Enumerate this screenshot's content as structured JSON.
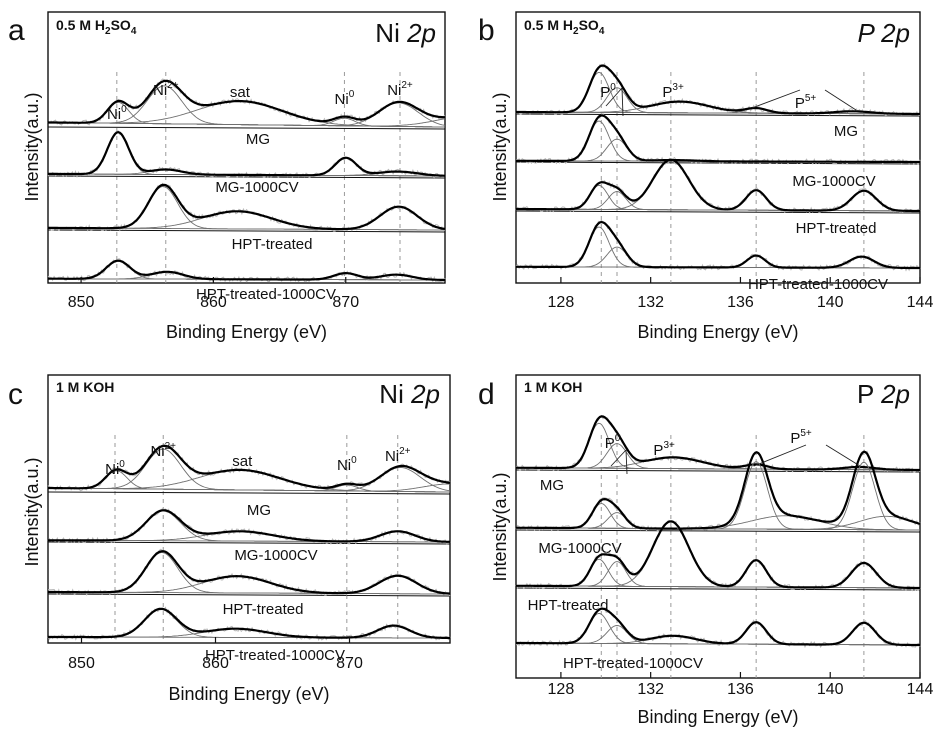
{
  "chart_data": [
    {
      "panel": "a",
      "type": "line",
      "condition": "0.5 M H2SO4",
      "condition_parts": {
        "pre": "0.5 M H",
        "sub1": "2",
        "mid": "SO",
        "sub2": "4"
      },
      "element": "Ni",
      "orbital": "2p",
      "xlabel": "Binding Energy (eV)",
      "ylabel": "Intensity(a.u.)",
      "xlim": [
        847.5,
        877.5
      ],
      "xticks": [
        850,
        860,
        870
      ],
      "reference_lines": [
        852.7,
        856.4,
        869.9,
        874.1
      ],
      "peak_labels": [
        {
          "text": "Ni",
          "sup": "0",
          "x": 852.7
        },
        {
          "text": "Ni",
          "sup": "2+",
          "x": 856.4
        },
        {
          "text": "sat",
          "sup": "",
          "x": 862.0
        },
        {
          "text": "Ni",
          "sup": "0",
          "x": 869.9
        },
        {
          "text": "Ni",
          "sup": "2+",
          "x": 874.1
        }
      ],
      "series": [
        {
          "name": "MG",
          "peaks": [
            [
              852.8,
              0.55,
              0.8
            ],
            [
              856.3,
              1.0,
              1.3
            ],
            [
              862.0,
              0.62,
              3.2
            ],
            [
              869.9,
              0.2,
              0.8
            ],
            [
              874.0,
              0.62,
              1.5
            ],
            [
              879.5,
              0.3,
              2.5
            ]
          ],
          "bg": 0.12
        },
        {
          "name": "MG-1000CV",
          "peaks": [
            [
              852.8,
              1.0,
              0.8
            ],
            [
              856.4,
              0.12,
              1.2
            ],
            [
              870.0,
              0.42,
              0.8
            ],
            [
              873.9,
              0.1,
              1.5
            ]
          ],
          "bg": 0.05
        },
        {
          "name": "HPT-treated",
          "peaks": [
            [
              856.2,
              1.0,
              1.1
            ],
            [
              861.8,
              0.42,
              2.6
            ],
            [
              874.0,
              0.55,
              1.4
            ]
          ],
          "bg": 0.05
        },
        {
          "name": "HPT-treated-1000CV",
          "peaks": [
            [
              852.8,
              0.7,
              0.9
            ],
            [
              856.5,
              0.28,
              1.2
            ],
            [
              870.0,
              0.25,
              0.9
            ],
            [
              873.8,
              0.2,
              1.2
            ]
          ],
          "bg": 0.05
        }
      ]
    },
    {
      "panel": "b",
      "type": "line",
      "condition": "0.5 M H2SO4",
      "condition_parts": {
        "pre": "0.5 M H",
        "sub1": "2",
        "mid": "SO",
        "sub2": "4"
      },
      "element": "P",
      "orbital": "2p",
      "xlabel": "Binding Energy (eV)",
      "ylabel": "Intensity(a.u.)",
      "xlim": [
        126,
        144
      ],
      "xticks": [
        128,
        132,
        136,
        140,
        144
      ],
      "reference_lines": [
        129.8,
        130.5,
        132.9,
        136.7,
        141.5
      ],
      "peak_labels": [
        {
          "text": "P",
          "sup": "0",
          "x": 130.1
        },
        {
          "text": "P",
          "sup": "3+",
          "x": 133.0
        },
        {
          "text": "P",
          "sup": "5+",
          "x": 138.9
        }
      ],
      "series": [
        {
          "name": "MG",
          "peaks": [
            [
              129.7,
              1.0,
              0.45
            ],
            [
              130.5,
              0.62,
              0.45
            ],
            [
              133.3,
              0.28,
              1.3
            ],
            [
              136.7,
              0.12,
              0.5
            ],
            [
              141.0,
              0.06,
              0.8
            ]
          ],
          "bg": 0.05
        },
        {
          "name": "MG-1000CV",
          "peaks": [
            [
              129.7,
              1.0,
              0.45
            ],
            [
              130.5,
              0.55,
              0.45
            ],
            [
              133.0,
              0.03,
              1.0
            ]
          ],
          "bg": 0.03
        },
        {
          "name": "HPT-treated",
          "peaks": [
            [
              129.7,
              0.6,
              0.4
            ],
            [
              130.5,
              0.45,
              0.4
            ],
            [
              132.9,
              1.25,
              0.8
            ],
            [
              136.7,
              0.5,
              0.45
            ],
            [
              141.5,
              0.5,
              0.55
            ]
          ],
          "bg": 0.05
        },
        {
          "name": "HPT-treated-1000CV",
          "peaks": [
            [
              129.7,
              1.0,
              0.45
            ],
            [
              130.5,
              0.5,
              0.45
            ],
            [
              136.7,
              0.3,
              0.4
            ],
            [
              141.4,
              0.28,
              0.55
            ]
          ],
          "bg": 0.03
        }
      ]
    },
    {
      "panel": "c",
      "type": "line",
      "condition": "1 M KOH",
      "condition_parts": {
        "pre": "1 M KOH",
        "sub1": "",
        "mid": "",
        "sub2": ""
      },
      "element": "Ni",
      "orbital": "2p",
      "xlabel": "Binding Energy (eV)",
      "ylabel": "Intensity(a.u.)",
      "xlim": [
        847.5,
        877.5
      ],
      "xticks": [
        850,
        860,
        870
      ],
      "reference_lines": [
        852.5,
        856.1,
        869.8,
        873.6
      ],
      "peak_labels": [
        {
          "text": "Ni",
          "sup": "0",
          "x": 852.5
        },
        {
          "text": "Ni",
          "sup": "2+",
          "x": 856.1
        },
        {
          "text": "sat",
          "sup": "",
          "x": 862.0
        },
        {
          "text": "Ni",
          "sup": "0",
          "x": 869.8
        },
        {
          "text": "Ni",
          "sup": "2+",
          "x": 873.6
        }
      ],
      "series": [
        {
          "name": "MG",
          "peaks": [
            [
              852.6,
              0.45,
              0.8
            ],
            [
              856.1,
              1.0,
              1.3
            ],
            [
              861.8,
              0.5,
              3.0
            ],
            [
              869.8,
              0.15,
              0.8
            ],
            [
              873.8,
              0.6,
              1.5
            ],
            [
              877.5,
              0.2,
              2.0
            ]
          ],
          "bg": 0.1
        },
        {
          "name": "MG-1000CV",
          "peaks": [
            [
              856.1,
              0.85,
              1.3
            ],
            [
              861.8,
              0.28,
              2.5
            ],
            [
              873.6,
              0.3,
              1.3
            ]
          ],
          "bg": 0.05
        },
        {
          "name": "HPT-treated",
          "peaks": [
            [
              856.0,
              1.0,
              1.2
            ],
            [
              861.6,
              0.42,
              2.5
            ],
            [
              873.6,
              0.45,
              1.4
            ]
          ],
          "bg": 0.05
        },
        {
          "name": "HPT-treated-1000CV",
          "peaks": [
            [
              855.9,
              0.8,
              1.2
            ],
            [
              861.5,
              0.25,
              2.3
            ],
            [
              873.3,
              0.35,
              1.2
            ]
          ],
          "bg": 0.03
        }
      ]
    },
    {
      "panel": "d",
      "type": "line",
      "condition": "1 M KOH",
      "condition_parts": {
        "pre": "1 M KOH",
        "sub1": "",
        "mid": "",
        "sub2": ""
      },
      "element": "P",
      "orbital": "2p",
      "xlabel": "Binding Energy (eV)",
      "ylabel": "Intensity(a.u.)",
      "xlim": [
        126,
        144
      ],
      "xticks": [
        128,
        132,
        136,
        140,
        144
      ],
      "reference_lines": [
        129.8,
        130.5,
        132.9,
        136.7,
        141.5
      ],
      "peak_labels": [
        {
          "text": "P",
          "sup": "0",
          "x": 130.3
        },
        {
          "text": "P",
          "sup": "3+",
          "x": 132.6
        },
        {
          "text": "P",
          "sup": "5+",
          "x": 138.7
        }
      ],
      "series": [
        {
          "name": "MG",
          "peaks": [
            [
              129.7,
              1.0,
              0.45
            ],
            [
              130.5,
              0.55,
              0.45
            ],
            [
              133.0,
              0.25,
              1.3
            ],
            [
              136.7,
              0.1,
              0.5
            ],
            [
              141.3,
              0.06,
              0.7
            ]
          ],
          "bg": 0.05
        },
        {
          "name": "MG-1000CV",
          "peaks": [
            [
              129.8,
              0.55,
              0.4
            ],
            [
              130.5,
              0.35,
              0.4
            ],
            [
              136.7,
              1.5,
              0.5
            ],
            [
              138.0,
              0.3,
              1.5
            ],
            [
              141.5,
              1.5,
              0.5
            ],
            [
              142.5,
              0.3,
              1.2
            ]
          ],
          "bg": 0.05
        },
        {
          "name": "HPT-treated",
          "peaks": [
            [
              129.7,
              0.6,
              0.4
            ],
            [
              130.5,
              0.55,
              0.4
            ],
            [
              132.9,
              1.45,
              0.8
            ],
            [
              136.7,
              0.6,
              0.45
            ],
            [
              141.5,
              0.55,
              0.55
            ]
          ],
          "bg": 0.05
        },
        {
          "name": "HPT-treated-1000CV",
          "peaks": [
            [
              129.7,
              0.75,
              0.45
            ],
            [
              130.5,
              0.45,
              0.45
            ],
            [
              133.0,
              0.2,
              1.0
            ],
            [
              136.7,
              0.55,
              0.45
            ],
            [
              141.5,
              0.55,
              0.5
            ]
          ],
          "bg": 0.05
        }
      ]
    }
  ]
}
